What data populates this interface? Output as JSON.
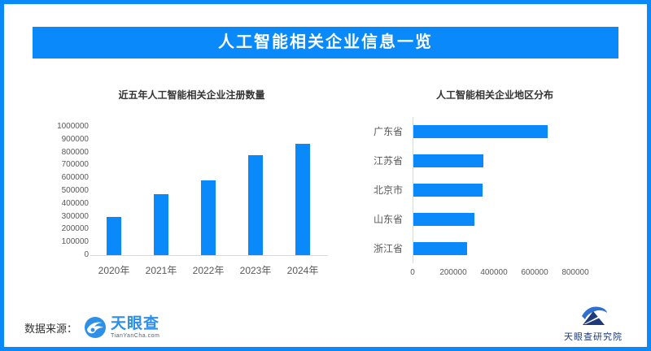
{
  "header": {
    "title": "人工智能相关企业信息一览"
  },
  "colors": {
    "accent": "#0a89fb",
    "bar": "#0a89fb",
    "axis_text": "#595959",
    "title_text": "#333333"
  },
  "chart_data": [
    {
      "type": "bar",
      "orientation": "vertical",
      "title": "近五年人工智能相关企业注册数量",
      "categories": [
        "2020年",
        "2021年",
        "2022年",
        "2023年",
        "2024年"
      ],
      "values": [
        300000,
        475000,
        585000,
        780000,
        870000
      ],
      "xlabel": "",
      "ylabel": "",
      "ylim": [
        0,
        1000000
      ],
      "yticks": [
        0,
        100000,
        200000,
        300000,
        400000,
        500000,
        600000,
        700000,
        800000,
        900000,
        1000000
      ],
      "grid": false,
      "legend": false,
      "bar_color": "#0a89fb"
    },
    {
      "type": "bar",
      "orientation": "horizontal",
      "title": "人工智能相关企业地区分布",
      "categories": [
        "广东省",
        "江苏省",
        "北京市",
        "山东省",
        "浙江省"
      ],
      "values": [
        660000,
        345000,
        340000,
        300000,
        265000
      ],
      "xlabel": "",
      "ylabel": "",
      "xlim": [
        0,
        800000
      ],
      "xticks": [
        0,
        200000,
        400000,
        600000,
        800000
      ],
      "grid": false,
      "legend": false,
      "bar_color": "#0a89fb"
    }
  ],
  "footer": {
    "source_label": "数据来源：",
    "source_logo_name": "天眼查",
    "source_logo_sub": "TianYanCha.com",
    "institute_name": "天眼查研究院"
  }
}
